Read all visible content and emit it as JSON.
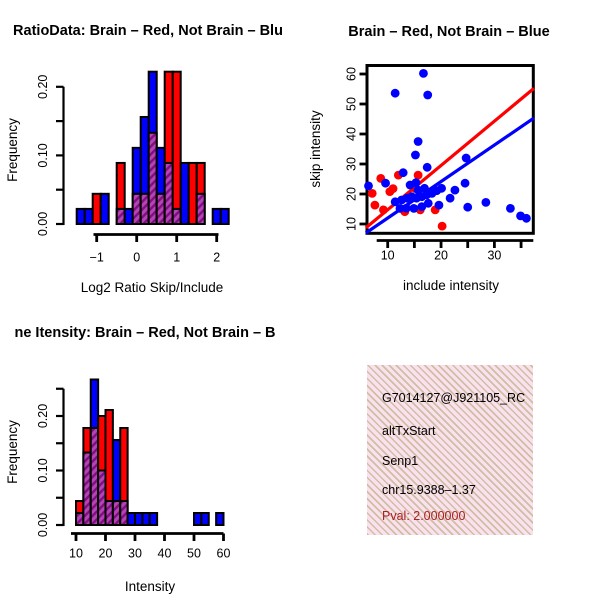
{
  "figure": {
    "background": "#ffffff"
  },
  "panels": {
    "info_box": {
      "bg_color": "#fbe1ef",
      "hatch_color": "#cdbfa0",
      "lines": [
        {
          "text": "G7014127@J921105_RC",
          "color": "#000000"
        },
        {
          "text": "altTxStart",
          "color": "#000000"
        },
        {
          "text": "Senp1",
          "color": "#000000"
        },
        {
          "text": "chr15.9388–1.37",
          "color": "#000000"
        },
        {
          "text": "Pval: 2.000000",
          "color": "#ab2020"
        }
      ]
    }
  },
  "chart_data": [
    {
      "type": "bar",
      "subtype": "overlaid_histogram",
      "title": "RatioData: Brain – Red, Not Brain – Blu",
      "xlabel": "Log2 Ratio Skip/Include",
      "ylabel": "Frequency",
      "bin_start": -1.5,
      "bin_width": 0.2,
      "xlim": [
        -1.6,
        2.35
      ],
      "ylim": [
        0,
        0.222
      ],
      "grid": false,
      "overlap_color": "#b344b3",
      "overlap_stripe_color": "#800e80",
      "bar_border_color": "#000000",
      "xticks": [
        {
          "v": -1,
          "label": "−1"
        },
        {
          "v": 0,
          "label": "0"
        },
        {
          "v": 1,
          "label": "1"
        },
        {
          "v": 2,
          "label": "2"
        }
      ],
      "yticks": [
        {
          "v": 0,
          "label": "0.00"
        },
        {
          "v": 0.05
        },
        {
          "v": 0.1,
          "label": "0.10"
        },
        {
          "v": 0.15
        },
        {
          "v": 0.2,
          "label": "0.20"
        }
      ],
      "series": [
        {
          "name": "Brain",
          "color": "#ff0000",
          "values": [
            0,
            0,
            0.044,
            0,
            0,
            0.089,
            0,
            0.044,
            0.044,
            0.133,
            0.044,
            0.222,
            0.222,
            0,
            0.089,
            0.089,
            0,
            0,
            0
          ]
        },
        {
          "name": "Not Brain",
          "color": "#0000ff",
          "values": [
            0.022,
            0.022,
            0,
            0.044,
            0,
            0.022,
            0.022,
            0.111,
            0.156,
            0.222,
            0.111,
            0.089,
            0.022,
            0.089,
            0,
            0.044,
            0,
            0.022,
            0.022
          ]
        }
      ]
    },
    {
      "type": "scatter",
      "title": "Brain – Red, Not Brain – Blue",
      "xlabel": "include intensity",
      "ylabel": "skip intensity",
      "xlim": [
        5.9,
        37.4
      ],
      "ylim": [
        7,
        63
      ],
      "grid": false,
      "xticks": [
        {
          "v": 10,
          "label": "10"
        },
        {
          "v": 15
        },
        {
          "v": 20,
          "label": "20"
        },
        {
          "v": 25
        },
        {
          "v": 30,
          "label": "30"
        },
        {
          "v": 35
        }
      ],
      "yticks": [
        {
          "v": 10,
          "label": "10"
        },
        {
          "v": 20,
          "label": "20"
        },
        {
          "v": 30,
          "label": "30"
        },
        {
          "v": 40,
          "label": "40"
        },
        {
          "v": 50,
          "label": "50"
        },
        {
          "v": 60,
          "label": "60"
        }
      ],
      "series": [
        {
          "name": "Brain",
          "color": "#ff0000",
          "points": [
            [
              8.7,
              25.2
            ],
            [
              12.0,
              26.3
            ],
            [
              15.7,
              26.3
            ],
            [
              15.1,
              21.9
            ],
            [
              7.1,
              20.2
            ],
            [
              10.4,
              20.8
            ],
            [
              11.0,
              21.8
            ],
            [
              7.6,
              16.3
            ],
            [
              9.2,
              14.7
            ],
            [
              13.2,
              14.1
            ],
            [
              16.1,
              14.7
            ],
            [
              18.9,
              14.7
            ],
            [
              20.2,
              9.3
            ]
          ]
        },
        {
          "name": "Not Brain",
          "color": "#0000ff",
          "points": [
            [
              16.7,
              60.2
            ],
            [
              11.4,
              53.6
            ],
            [
              17.5,
              53.0
            ],
            [
              15.7,
              37.5
            ],
            [
              15.2,
              33.0
            ],
            [
              24.7,
              32.0
            ],
            [
              17.4,
              28.9
            ],
            [
              12.9,
              27.1
            ],
            [
              6.4,
              22.7
            ],
            [
              9.6,
              23.6
            ],
            [
              15.3,
              23.8
            ],
            [
              14.2,
              23.0
            ],
            [
              11.4,
              17.4
            ],
            [
              12.6,
              18.0
            ],
            [
              13.6,
              18.6
            ],
            [
              14.5,
              19.1
            ],
            [
              15.4,
              18.6
            ],
            [
              16.4,
              19.1
            ],
            [
              17.3,
              19.7
            ],
            [
              18.3,
              20.2
            ],
            [
              19.2,
              21.1
            ],
            [
              20.1,
              21.9
            ],
            [
              16.9,
              21.9
            ],
            [
              15.7,
              21.3
            ],
            [
              17.6,
              16.9
            ],
            [
              16.4,
              15.8
            ],
            [
              14.9,
              15.2
            ],
            [
              13.5,
              15.3
            ],
            [
              12.3,
              15.2
            ],
            [
              19.6,
              16.3
            ],
            [
              21.7,
              18.6
            ],
            [
              22.6,
              21.3
            ],
            [
              24.5,
              23.6
            ],
            [
              25.0,
              15.6
            ],
            [
              28.4,
              17.2
            ],
            [
              33.0,
              15.2
            ],
            [
              34.9,
              12.7
            ],
            [
              36.0,
              11.9
            ]
          ]
        }
      ],
      "lines": [
        {
          "name": "brain-fit",
          "color": "#ff0000",
          "x1": 5.9,
          "y1": 8.7,
          "x2": 37.4,
          "y2": 55.2
        },
        {
          "name": "notbrain-fit",
          "color": "#0000ff",
          "x1": 5.9,
          "y1": 7.0,
          "x2": 37.4,
          "y2": 45.3
        }
      ]
    },
    {
      "type": "bar",
      "subtype": "overlaid_histogram",
      "title": "ne Itensity: Brain – Red, Not Brain – B",
      "xlabel": "Intensity",
      "ylabel": "Frequency",
      "bin_start": 10,
      "bin_width": 2.5,
      "xlim": [
        10,
        62
      ],
      "ylim": [
        0,
        0.267
      ],
      "grid": false,
      "overlap_color": "#b344b3",
      "overlap_stripe_color": "#800e80",
      "bar_border_color": "#000000",
      "xticks": [
        {
          "v": 10,
          "label": "10"
        },
        {
          "v": 20,
          "label": "20"
        },
        {
          "v": 30,
          "label": "30"
        },
        {
          "v": 40,
          "label": "40"
        },
        {
          "v": 50,
          "label": "50"
        },
        {
          "v": 60,
          "label": "60"
        }
      ],
      "yticks": [
        {
          "v": 0,
          "label": "0.00"
        },
        {
          "v": 0.05
        },
        {
          "v": 0.1,
          "label": "0.10"
        },
        {
          "v": 0.15
        },
        {
          "v": 0.2,
          "label": "0.20"
        },
        {
          "v": 0.25
        }
      ],
      "series": [
        {
          "name": "Brain",
          "color": "#ff0000",
          "values": [
            0.044,
            0.178,
            0.178,
            0.2,
            0.211,
            0.044,
            0.178,
            0,
            0,
            0,
            0,
            0,
            0,
            0,
            0,
            0,
            0,
            0,
            0,
            0
          ]
        },
        {
          "name": "Not Brain",
          "color": "#0000ff",
          "values": [
            0.022,
            0.133,
            0.267,
            0.1,
            0.044,
            0.156,
            0.044,
            0.022,
            0.022,
            0.022,
            0.022,
            0,
            0,
            0,
            0,
            0,
            0.022,
            0.022,
            0,
            0.022
          ]
        }
      ]
    }
  ]
}
